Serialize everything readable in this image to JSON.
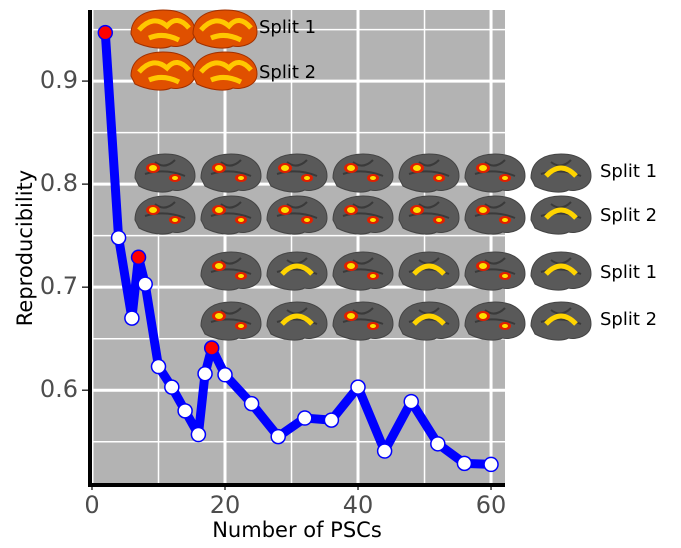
{
  "chart_data": {
    "type": "line",
    "x_label": "Number of PSCs",
    "y_label": "Reproducibility",
    "x": [
      2,
      4,
      6,
      7,
      8,
      10,
      12,
      14,
      16,
      17,
      18,
      20,
      24,
      28,
      32,
      36,
      40,
      44,
      48,
      52,
      56,
      60
    ],
    "series": [
      {
        "color": "#0000ff",
        "values": [
          0.947,
          0.748,
          0.67,
          0.729,
          0.703,
          0.623,
          0.603,
          0.58,
          0.557,
          0.616,
          0.641,
          0.615,
          0.587,
          0.555,
          0.573,
          0.571,
          0.603,
          0.541,
          0.589,
          0.548,
          0.529,
          0.528
        ],
        "point_colors": [
          "#ff0000",
          "#ffffff",
          "#ffffff",
          "#ff0000",
          "#ffffff",
          "#ffffff",
          "#ffffff",
          "#ffffff",
          "#ffffff",
          "#ffffff",
          "#ff0000",
          "#ffffff",
          "#ffffff",
          "#ffffff",
          "#ffffff",
          "#ffffff",
          "#ffffff",
          "#ffffff",
          "#ffffff",
          "#ffffff",
          "#ffffff",
          "#ffffff"
        ]
      }
    ],
    "xlim": [
      -0.6,
      62.1
    ],
    "ylim": [
      0.509,
      0.969
    ],
    "xticks": [
      0,
      20,
      40,
      60
    ],
    "yticks": [
      0.6,
      0.7,
      0.8,
      0.9
    ],
    "xminor": [
      10,
      30,
      50
    ],
    "yminor": [
      0.55,
      0.65,
      0.75,
      0.85,
      0.95
    ],
    "grid": true,
    "background": "#b3b3b3",
    "brain_labels": [
      "Split 1",
      "Split 2",
      "Split 1",
      "Split 2",
      "Split 1",
      "Split 2"
    ]
  }
}
